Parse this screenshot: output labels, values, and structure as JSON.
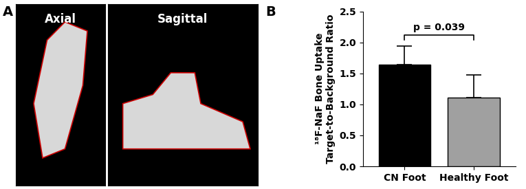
{
  "panel_labels": [
    "A",
    "B"
  ],
  "image_titles": [
    "Axial",
    "Sagittal"
  ],
  "chart_data": {
    "type": "bar",
    "y_label": "¹⁸F-NaF Bone Uptake\nTarget-to-Background Ratio",
    "categories": [
      "CN Foot",
      "Healthy Foot"
    ],
    "values": [
      1.64,
      1.11
    ],
    "errors": [
      0.3,
      0.36
    ],
    "colors": [
      "#000000",
      "#a0a0a0"
    ],
    "ylim": [
      0,
      2.5
    ],
    "yticks": [
      {
        "value": 0,
        "label": "0.0"
      },
      {
        "value": 0.5,
        "label": "0.5"
      },
      {
        "value": 1.0,
        "label": "1.0"
      },
      {
        "value": 1.5,
        "label": "1.5"
      },
      {
        "value": 2.0,
        "label": "2.0"
      },
      {
        "value": 2.5,
        "label": "2.5"
      }
    ],
    "annotations": [
      "p = 0.039"
    ]
  }
}
